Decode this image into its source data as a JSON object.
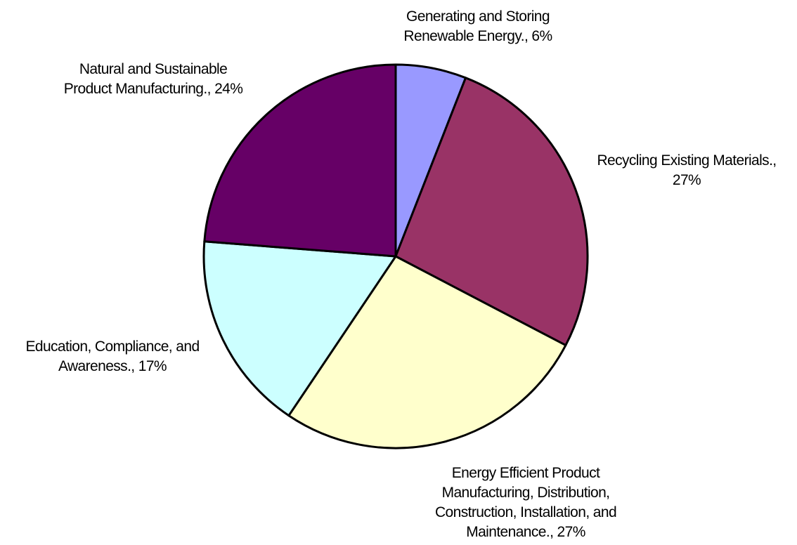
{
  "chart_data": {
    "type": "pie",
    "start_angle_deg": 0,
    "direction": "clockwise",
    "slices": [
      {
        "label": "Generating and Storing Renewable Energy.",
        "value": 6,
        "value_label": "6%",
        "color": "#9999ff",
        "label_lines": [
          "Generating and Storing",
          "Renewable Energy., 6%"
        ]
      },
      {
        "label": "Recycling Existing Materials.",
        "value": 27,
        "value_label": "27%",
        "color": "#993366",
        "label_lines": [
          "Recycling Existing Materials.,",
          "27%"
        ]
      },
      {
        "label": "Energy Efficient Product Manufacturing, Distribution, Construction, Installation, and Maintenance.",
        "value": 27,
        "value_label": "27%",
        "color": "#ffffcc",
        "label_lines": [
          "Energy Efficient Product",
          "Manufacturing, Distribution,",
          "Construction, Installation, and",
          "Maintenance., 27%"
        ]
      },
      {
        "label": "Education, Compliance, and Awareness.",
        "value": 17,
        "value_label": "17%",
        "color": "#ccffff",
        "label_lines": [
          "Education, Compliance, and",
          "Awareness., 17%"
        ]
      },
      {
        "label": "Natural and Sustainable Product Manufacturing.",
        "value": 24,
        "value_label": "24%",
        "color": "#660066",
        "label_lines": [
          "Natural and Sustainable",
          "Product Manufacturing., 24%"
        ]
      }
    ]
  }
}
